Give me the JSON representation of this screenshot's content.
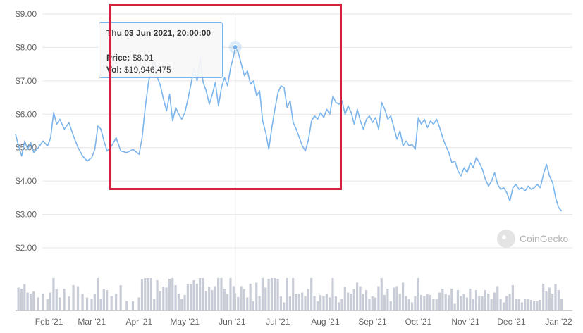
{
  "chart_data": {
    "type": "line",
    "title": "",
    "xlabel": "",
    "ylabel": "",
    "ylim": [
      1.5,
      9.0
    ],
    "yticks": [
      "$9.00",
      "$8.00",
      "$7.00",
      "$6.00",
      "$5.00",
      "$4.00",
      "$3.00",
      "$2.00"
    ],
    "ytick_values": [
      9,
      8,
      7,
      6,
      5,
      4,
      3,
      2
    ],
    "xticks": [
      "Feb '21",
      "Mar '21",
      "Apr '21",
      "May '21",
      "Jun '21",
      "Jul '21",
      "Aug '21",
      "Sep '21",
      "Oct '21",
      "Nov '21",
      "Dec '21",
      "Jan '22"
    ],
    "xtick_dates": [
      "2021-02-01",
      "2021-03-01",
      "2021-04-01",
      "2021-05-01",
      "2021-06-01",
      "2021-07-01",
      "2021-08-01",
      "2021-09-01",
      "2021-10-01",
      "2021-11-01",
      "2021-12-01",
      "2022-01-01"
    ],
    "x_start": "2021-01-10",
    "x_end": "2022-01-10",
    "grid": true,
    "line_color": "#7cb5ec",
    "volume_color": "#c8ccd6",
    "series": [
      {
        "values": [
          [
            "2021-01-10",
            5.4
          ],
          [
            "2021-01-12",
            5.05
          ],
          [
            "2021-01-14",
            4.75
          ],
          [
            "2021-01-16",
            5.2
          ],
          [
            "2021-01-18",
            4.95
          ],
          [
            "2021-01-20",
            5.15
          ],
          [
            "2021-01-22",
            4.85
          ],
          [
            "2021-01-25",
            5.0
          ],
          [
            "2021-01-28",
            5.2
          ],
          [
            "2021-01-31",
            5.05
          ],
          [
            "2021-02-02",
            5.3
          ],
          [
            "2021-02-04",
            6.05
          ],
          [
            "2021-02-06",
            5.7
          ],
          [
            "2021-02-08",
            5.85
          ],
          [
            "2021-02-11",
            5.55
          ],
          [
            "2021-02-14",
            5.75
          ],
          [
            "2021-02-17",
            5.35
          ],
          [
            "2021-02-20",
            5.0
          ],
          [
            "2021-02-23",
            4.75
          ],
          [
            "2021-02-26",
            4.6
          ],
          [
            "2021-03-01",
            4.7
          ],
          [
            "2021-03-03",
            4.95
          ],
          [
            "2021-03-05",
            5.65
          ],
          [
            "2021-03-07",
            5.55
          ],
          [
            "2021-03-09",
            5.2
          ],
          [
            "2021-03-11",
            4.9
          ],
          [
            "2021-03-14",
            5.05
          ],
          [
            "2021-03-17",
            5.3
          ],
          [
            "2021-03-20",
            4.9
          ],
          [
            "2021-03-24",
            4.85
          ],
          [
            "2021-03-28",
            4.95
          ],
          [
            "2021-04-01",
            4.8
          ],
          [
            "2021-04-03",
            5.3
          ],
          [
            "2021-04-05",
            6.2
          ],
          [
            "2021-04-07",
            6.9
          ],
          [
            "2021-04-09",
            7.45
          ],
          [
            "2021-04-11",
            7.6
          ],
          [
            "2021-04-13",
            7.1
          ],
          [
            "2021-04-15",
            6.85
          ],
          [
            "2021-04-17",
            6.45
          ],
          [
            "2021-04-19",
            6.1
          ],
          [
            "2021-04-21",
            6.6
          ],
          [
            "2021-04-23",
            5.8
          ],
          [
            "2021-04-25",
            6.2
          ],
          [
            "2021-04-27",
            6.0
          ],
          [
            "2021-04-29",
            5.85
          ],
          [
            "2021-05-01",
            6.05
          ],
          [
            "2021-05-03",
            6.45
          ],
          [
            "2021-05-05",
            6.9
          ],
          [
            "2021-05-07",
            7.4
          ],
          [
            "2021-05-09",
            7.0
          ],
          [
            "2021-05-11",
            7.7
          ],
          [
            "2021-05-13",
            6.95
          ],
          [
            "2021-05-15",
            6.7
          ],
          [
            "2021-05-17",
            6.3
          ],
          [
            "2021-05-19",
            6.6
          ],
          [
            "2021-05-21",
            6.95
          ],
          [
            "2021-05-23",
            6.25
          ],
          [
            "2021-05-25",
            6.8
          ],
          [
            "2021-05-27",
            7.1
          ],
          [
            "2021-05-29",
            6.85
          ],
          [
            "2021-05-31",
            7.4
          ],
          [
            "2021-06-02",
            7.75
          ],
          [
            "2021-06-03",
            8.01
          ],
          [
            "2021-06-05",
            7.85
          ],
          [
            "2021-06-07",
            7.5
          ],
          [
            "2021-06-09",
            7.15
          ],
          [
            "2021-06-11",
            7.3
          ],
          [
            "2021-06-13",
            6.9
          ],
          [
            "2021-06-15",
            7.0
          ],
          [
            "2021-06-17",
            6.55
          ],
          [
            "2021-06-19",
            6.7
          ],
          [
            "2021-06-21",
            5.8
          ],
          [
            "2021-06-23",
            5.45
          ],
          [
            "2021-06-25",
            4.95
          ],
          [
            "2021-06-27",
            5.6
          ],
          [
            "2021-06-29",
            6.15
          ],
          [
            "2021-07-01",
            6.65
          ],
          [
            "2021-07-03",
            6.85
          ],
          [
            "2021-07-05",
            6.8
          ],
          [
            "2021-07-07",
            6.2
          ],
          [
            "2021-07-09",
            6.4
          ],
          [
            "2021-07-11",
            5.75
          ],
          [
            "2021-07-13",
            5.55
          ],
          [
            "2021-07-15",
            5.3
          ],
          [
            "2021-07-17",
            5.05
          ],
          [
            "2021-07-19",
            4.9
          ],
          [
            "2021-07-21",
            5.25
          ],
          [
            "2021-07-23",
            5.8
          ],
          [
            "2021-07-25",
            5.95
          ],
          [
            "2021-07-27",
            5.85
          ],
          [
            "2021-07-29",
            6.05
          ],
          [
            "2021-07-31",
            5.9
          ],
          [
            "2021-08-02",
            6.15
          ],
          [
            "2021-08-04",
            6.0
          ],
          [
            "2021-08-06",
            6.55
          ],
          [
            "2021-08-08",
            6.35
          ],
          [
            "2021-08-10",
            6.3
          ],
          [
            "2021-08-12",
            6.4
          ],
          [
            "2021-08-14",
            6.0
          ],
          [
            "2021-08-16",
            6.25
          ],
          [
            "2021-08-18",
            6.05
          ],
          [
            "2021-08-20",
            5.7
          ],
          [
            "2021-08-22",
            6.15
          ],
          [
            "2021-08-24",
            5.8
          ],
          [
            "2021-08-26",
            5.55
          ],
          [
            "2021-08-28",
            5.85
          ],
          [
            "2021-08-30",
            5.95
          ],
          [
            "2021-09-01",
            5.75
          ],
          [
            "2021-09-03",
            5.9
          ],
          [
            "2021-09-05",
            5.55
          ],
          [
            "2021-09-07",
            6.35
          ],
          [
            "2021-09-09",
            6.15
          ],
          [
            "2021-09-11",
            5.85
          ],
          [
            "2021-09-13",
            5.95
          ],
          [
            "2021-09-15",
            5.6
          ],
          [
            "2021-09-17",
            5.25
          ],
          [
            "2021-09-19",
            5.5
          ],
          [
            "2021-09-21",
            5.05
          ],
          [
            "2021-09-23",
            5.2
          ],
          [
            "2021-09-25",
            5.05
          ],
          [
            "2021-09-27",
            5.1
          ],
          [
            "2021-09-29",
            4.95
          ],
          [
            "2021-10-01",
            5.9
          ],
          [
            "2021-10-03",
            5.7
          ],
          [
            "2021-10-05",
            5.85
          ],
          [
            "2021-10-07",
            5.6
          ],
          [
            "2021-10-09",
            5.8
          ],
          [
            "2021-10-11",
            5.7
          ],
          [
            "2021-10-13",
            5.85
          ],
          [
            "2021-10-15",
            5.6
          ],
          [
            "2021-10-17",
            5.3
          ],
          [
            "2021-10-19",
            5.05
          ],
          [
            "2021-10-21",
            4.85
          ],
          [
            "2021-10-23",
            4.55
          ],
          [
            "2021-10-25",
            4.6
          ],
          [
            "2021-10-27",
            4.3
          ],
          [
            "2021-10-29",
            4.15
          ],
          [
            "2021-10-31",
            4.4
          ],
          [
            "2021-11-02",
            4.25
          ],
          [
            "2021-11-04",
            4.55
          ],
          [
            "2021-11-06",
            4.4
          ],
          [
            "2021-11-08",
            4.7
          ],
          [
            "2021-11-10",
            4.55
          ],
          [
            "2021-11-12",
            4.35
          ],
          [
            "2021-11-14",
            4.05
          ],
          [
            "2021-11-16",
            3.85
          ],
          [
            "2021-11-18",
            4.0
          ],
          [
            "2021-11-20",
            4.25
          ],
          [
            "2021-11-22",
            3.9
          ],
          [
            "2021-11-24",
            3.75
          ],
          [
            "2021-11-26",
            3.8
          ],
          [
            "2021-11-28",
            3.65
          ],
          [
            "2021-11-30",
            3.4
          ],
          [
            "2021-12-02",
            3.8
          ],
          [
            "2021-12-04",
            3.9
          ],
          [
            "2021-12-06",
            3.75
          ],
          [
            "2021-12-08",
            3.8
          ],
          [
            "2021-12-10",
            3.7
          ],
          [
            "2021-12-12",
            3.85
          ],
          [
            "2021-12-14",
            3.75
          ],
          [
            "2021-12-16",
            3.8
          ],
          [
            "2021-12-18",
            3.9
          ],
          [
            "2021-12-20",
            3.8
          ],
          [
            "2021-12-22",
            4.2
          ],
          [
            "2021-12-24",
            4.5
          ],
          [
            "2021-12-26",
            4.15
          ],
          [
            "2021-12-28",
            3.95
          ],
          [
            "2021-12-30",
            3.5
          ],
          [
            "2022-01-01",
            3.2
          ],
          [
            "2022-01-03",
            3.1
          ]
        ]
      }
    ],
    "tooltip": {
      "title": "Thu 03 Jun 2021, 20:00:00",
      "price_label": "Price:",
      "price_value": "$8.01",
      "vol_label": "Vol:",
      "vol_value": "$19,946,475",
      "hover_date": "2021-06-03",
      "hover_value": 8.01
    }
  },
  "watermark": {
    "text": "CoinGecko"
  }
}
